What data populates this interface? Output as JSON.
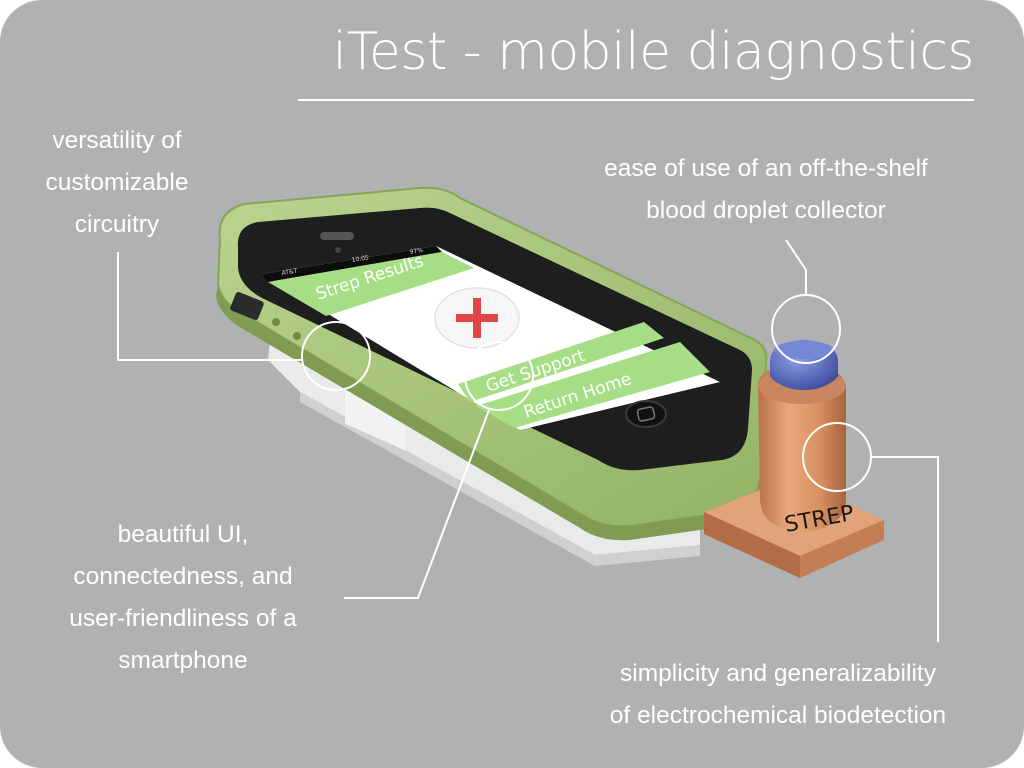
{
  "title": "iTest - mobile diagnostics",
  "captions": {
    "circuitry": [
      "versatility of",
      "customizable",
      "circuitry"
    ],
    "blood": [
      "ease of use of an off-the-shelf",
      "blood droplet collector"
    ],
    "ui": [
      "beautiful UI,",
      "connectedness, and",
      "user-friendliness of a",
      "smartphone"
    ],
    "electro": [
      "simplicity and generalizability",
      "of electrochemical biodetection"
    ]
  },
  "phone_screen": {
    "header": "Strep Results",
    "button_support": "Get Support",
    "button_home": "Return Home",
    "carrier": "AT&T",
    "clock": "10:05",
    "battery": "97%"
  },
  "sensor_label": "STREP",
  "colors": {
    "background": "#b0b1b3",
    "case_green": "#a7c57a",
    "screen_green": "#a6de85",
    "result_red": "#e04646",
    "collector_copper": "#d9936a",
    "cap_blue": "#5565b8"
  }
}
